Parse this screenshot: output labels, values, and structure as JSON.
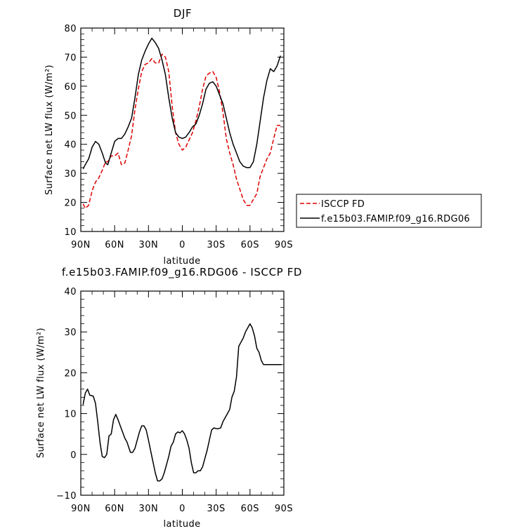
{
  "chart_data": [
    {
      "type": "line",
      "title": "DJF",
      "xlabel": "latitude",
      "ylabel": "Surface net LW flux (W/m²)",
      "xlim": [
        90,
        -90
      ],
      "ylim": [
        10,
        80
      ],
      "xticks": [
        {
          "value": 90,
          "label": "90N"
        },
        {
          "value": 60,
          "label": "60N"
        },
        {
          "value": 30,
          "label": "30N"
        },
        {
          "value": 0,
          "label": "0"
        },
        {
          "value": -30,
          "label": "30S"
        },
        {
          "value": -60,
          "label": "60S"
        },
        {
          "value": -90,
          "label": "90S"
        }
      ],
      "yticks": [
        10,
        20,
        30,
        40,
        50,
        60,
        70,
        80
      ],
      "grid": false,
      "legend_position": "right",
      "series": [
        {
          "name": "ISCCP FD",
          "color": "#dd0000",
          "dash": "dashed",
          "x": [
            88,
            86,
            83,
            80,
            77,
            74,
            71,
            68,
            66,
            63,
            60,
            57,
            54,
            51,
            48,
            45,
            42,
            39,
            36,
            33,
            30,
            27,
            24,
            21,
            18,
            15,
            12,
            9,
            6,
            3,
            0,
            -3,
            -6,
            -9,
            -12,
            -15,
            -18,
            -21,
            -24,
            -27,
            -30,
            -33,
            -36,
            -39,
            -42,
            -45,
            -48,
            -51,
            -54,
            -57,
            -60,
            -63,
            -66,
            -69,
            -72,
            -75,
            -78,
            -81,
            -84,
            -87
          ],
          "y": [
            19.5,
            18,
            19,
            24,
            27,
            28.5,
            31,
            34,
            34,
            36,
            36,
            37,
            33,
            33.5,
            38,
            43,
            52,
            59,
            65,
            67.5,
            68,
            69.5,
            68,
            68,
            71,
            70,
            65,
            53,
            44,
            40,
            38,
            39,
            41.5,
            44,
            48,
            53,
            59,
            63.5,
            64.5,
            65,
            63,
            58,
            51,
            42,
            37,
            33,
            28,
            24.5,
            21,
            19,
            19,
            21,
            23,
            29,
            32,
            35,
            37,
            42,
            46.5,
            46.5
          ]
        },
        {
          "name": "f.e15b03.FAMIP.f09_g16.RDG06",
          "color": "#000000",
          "dash": "solid",
          "x": [
            88,
            86,
            83,
            80,
            77,
            74,
            71,
            68,
            66,
            63,
            60,
            57,
            54,
            51,
            48,
            45,
            42,
            39,
            36,
            33,
            30,
            27,
            24,
            21,
            18,
            15,
            12,
            9,
            6,
            3,
            0,
            -3,
            -6,
            -9,
            -12,
            -15,
            -18,
            -21,
            -24,
            -27,
            -30,
            -33,
            -36,
            -39,
            -42,
            -45,
            -48,
            -51,
            -54,
            -57,
            -60,
            -63,
            -66,
            -69,
            -72,
            -75,
            -78,
            -81,
            -84,
            -87
          ],
          "y": [
            31.5,
            33,
            35,
            39,
            41,
            40,
            37,
            33.5,
            33,
            37,
            41,
            42,
            42,
            43.5,
            46,
            49,
            56,
            64,
            69,
            72,
            74.5,
            76.5,
            75,
            73,
            69,
            64,
            56,
            49,
            44,
            42.5,
            42,
            42.5,
            44,
            46,
            47,
            50,
            54,
            59,
            61,
            61.5,
            60,
            57,
            54,
            49,
            44,
            40,
            37,
            34,
            32.5,
            32,
            32,
            34,
            40,
            48,
            56,
            62,
            66,
            65,
            67,
            70.5
          ]
        }
      ]
    },
    {
      "type": "line",
      "title": "f.e15b03.FAMIP.f09_g16.RDG06 - ISCCP FD",
      "xlabel": "latitude",
      "ylabel": "Surface net LW flux (W/m²)",
      "xlim": [
        90,
        -90
      ],
      "ylim": [
        -10,
        40
      ],
      "xticks": [
        {
          "value": 90,
          "label": "90N"
        },
        {
          "value": 60,
          "label": "60N"
        },
        {
          "value": 30,
          "label": "30N"
        },
        {
          "value": 0,
          "label": "0"
        },
        {
          "value": -30,
          "label": "30S"
        },
        {
          "value": -60,
          "label": "60S"
        },
        {
          "value": -90,
          "label": "90S"
        }
      ],
      "yticks": [
        -10,
        0,
        10,
        20,
        30,
        40
      ],
      "grid": false,
      "series": [
        {
          "color": "#000000",
          "dash": "solid",
          "x": [
            88,
            86,
            84,
            82,
            79,
            77,
            75,
            73,
            71,
            69,
            67,
            65,
            63,
            61,
            59,
            57,
            55,
            53,
            51,
            49,
            46,
            44,
            42,
            40,
            38,
            36,
            34,
            32,
            30,
            27,
            24,
            22,
            20,
            18,
            16,
            14,
            12,
            10,
            8,
            6,
            4,
            2,
            0,
            -2,
            -4,
            -6,
            -8,
            -10,
            -12,
            -14,
            -16,
            -18,
            -20,
            -22,
            -24,
            -26,
            -28,
            -30,
            -32,
            -34,
            -36,
            -38,
            -40,
            -42,
            -44,
            -46,
            -48,
            -50,
            -52,
            -54,
            -56,
            -58,
            -60,
            -62,
            -64,
            -66,
            -68,
            -70,
            -72,
            -74,
            -76,
            -78,
            -80,
            -82,
            -84,
            -86,
            -88
          ],
          "y": [
            12.2,
            15,
            16,
            14.5,
            14.3,
            12.5,
            8,
            3,
            -0.5,
            -0.8,
            0,
            4.5,
            5,
            8.5,
            9.8,
            8.5,
            7,
            5.5,
            4,
            3,
            0.5,
            0.5,
            1.5,
            3.5,
            5.5,
            7,
            7,
            6,
            3.5,
            -0.5,
            -4.5,
            -6.5,
            -6.5,
            -6,
            -4.5,
            -2.5,
            -0.5,
            2,
            3,
            5,
            5.5,
            5.3,
            5.8,
            5,
            3.5,
            1.5,
            -2,
            -4.5,
            -4.5,
            -4,
            -4,
            -3,
            -1,
            1,
            3.5,
            6,
            6.5,
            6.3,
            6.3,
            6.5,
            8,
            9,
            10,
            11,
            14,
            15.5,
            19,
            26.5,
            27.5,
            28.5,
            30,
            31,
            32,
            31,
            29,
            26,
            25,
            23,
            22,
            22,
            22,
            22,
            22,
            22,
            22,
            22,
            22
          ]
        }
      ]
    }
  ]
}
